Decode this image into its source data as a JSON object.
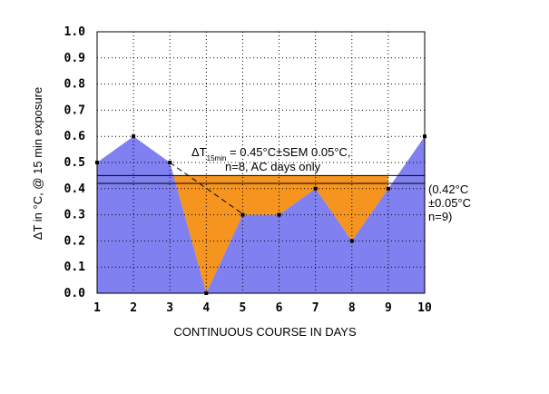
{
  "chart_data": {
    "type": "area",
    "x": [
      1,
      2,
      3,
      4,
      5,
      6,
      7,
      8,
      9,
      10
    ],
    "series": [
      {
        "values": [
          0.5,
          0.6,
          0.5,
          0.0,
          0.3,
          0.3,
          0.4,
          0.2,
          0.4,
          0.6
        ]
      }
    ],
    "xlabel": "CONTINUOUS COURSE IN DAYS",
    "ylabel": "ΔT in °C, @ 15 min exposure",
    "xlim": [
      1,
      10
    ],
    "ylim": [
      0.0,
      1.0
    ],
    "x_ticks": [
      "1",
      "2",
      "3",
      "4",
      "5",
      "6",
      "7",
      "8",
      "9",
      "10"
    ],
    "y_ticks": [
      "0.0",
      "0.1",
      "0.2",
      "0.3",
      "0.4",
      "0.5",
      "0.6",
      "0.7",
      "0.8",
      "0.9",
      "1.0"
    ],
    "grid": true,
    "reference_lines": [
      {
        "value": 0.45,
        "color": "#000000"
      },
      {
        "value": 0.42,
        "color": "#000000"
      }
    ],
    "colors": {
      "area": "#8080f0",
      "highlight": "#f5941e",
      "plot_bg": "#ffffff"
    },
    "annotations": {
      "main_prefix": "ΔT",
      "main_sub": "15min",
      "main_suffix": " = 0.45°C±SEM 0.05°C,",
      "main_line2": "n=8, AC days only",
      "side_line1": "(0.42°C",
      "side_line2": "±0.05°C",
      "side_line3": "n=9)"
    }
  }
}
